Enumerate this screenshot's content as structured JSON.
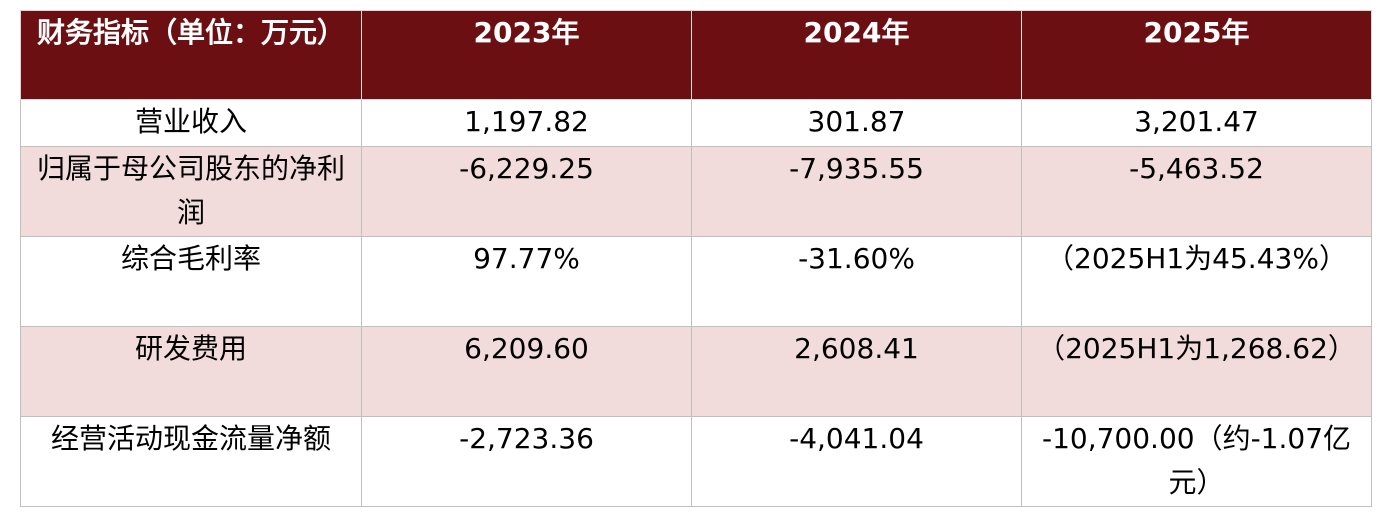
{
  "table": {
    "header": [
      "财务指标（单位：万元）",
      "2023年",
      "2024年",
      "2025年"
    ],
    "rows": [
      [
        "营业收入",
        "1,197.82",
        "301.87",
        "3,201.47"
      ],
      [
        "归属于母公司股东的净利润",
        "-6,229.25",
        "-7,935.55",
        "-5,463.52"
      ],
      [
        "综合毛利率",
        "97.77%",
        "-31.60%",
        "（2025H1为45.43%）"
      ],
      [
        "研发费用",
        "6,209.60",
        "2,608.41",
        "（2025H1为1,268.62）"
      ],
      [
        "经营活动现金流量净额",
        "-2,723.36",
        "-4,041.04",
        "-10,700.00（约-1.07亿元）"
      ]
    ]
  }
}
